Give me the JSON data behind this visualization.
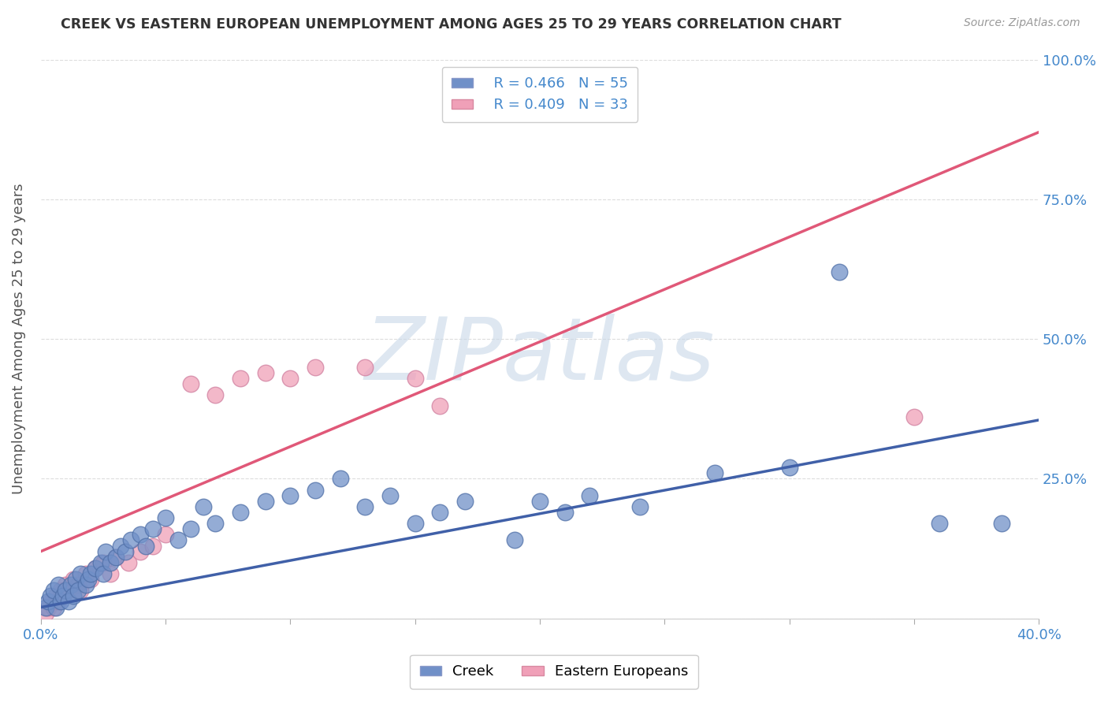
{
  "title": "CREEK VS EASTERN EUROPEAN UNEMPLOYMENT AMONG AGES 25 TO 29 YEARS CORRELATION CHART",
  "source": "Source: ZipAtlas.com",
  "xlabel": "",
  "ylabel": "Unemployment Among Ages 25 to 29 years",
  "xlim": [
    0.0,
    0.4
  ],
  "ylim": [
    0.0,
    1.0
  ],
  "xticks": [
    0.0,
    0.05,
    0.1,
    0.15,
    0.2,
    0.25,
    0.3,
    0.35,
    0.4
  ],
  "xticklabels": [
    "0.0%",
    "",
    "",
    "",
    "",
    "",
    "",
    "",
    "40.0%"
  ],
  "yticks": [
    0.0,
    0.25,
    0.5,
    0.75,
    1.0
  ],
  "yticklabels": [
    "",
    "25.0%",
    "50.0%",
    "75.0%",
    "100.0%"
  ],
  "creek_color": "#7090c8",
  "eastern_color": "#f0a0b8",
  "creek_line_color": "#4060a8",
  "eastern_line_color": "#e05878",
  "creek_R": 0.466,
  "creek_N": 55,
  "eastern_R": 0.409,
  "eastern_N": 33,
  "watermark": "ZIPatlas",
  "watermark_color": "#c8d8e8",
  "background_color": "#ffffff",
  "grid_color": "#dddddd",
  "creek_line_x0": 0.0,
  "creek_line_y0": 0.02,
  "creek_line_x1": 0.4,
  "creek_line_y1": 0.355,
  "eastern_line_x0": 0.0,
  "eastern_line_y0": 0.12,
  "eastern_line_x1": 0.4,
  "eastern_line_y1": 0.87,
  "creek_points_x": [
    0.002,
    0.003,
    0.004,
    0.005,
    0.006,
    0.007,
    0.008,
    0.009,
    0.01,
    0.011,
    0.012,
    0.013,
    0.014,
    0.015,
    0.016,
    0.018,
    0.019,
    0.02,
    0.022,
    0.024,
    0.025,
    0.026,
    0.028,
    0.03,
    0.032,
    0.034,
    0.036,
    0.04,
    0.042,
    0.045,
    0.05,
    0.055,
    0.06,
    0.065,
    0.07,
    0.08,
    0.09,
    0.1,
    0.11,
    0.12,
    0.13,
    0.14,
    0.15,
    0.16,
    0.17,
    0.19,
    0.2,
    0.21,
    0.22,
    0.24,
    0.27,
    0.3,
    0.32,
    0.36,
    0.385
  ],
  "creek_points_y": [
    0.02,
    0.03,
    0.04,
    0.05,
    0.02,
    0.06,
    0.03,
    0.04,
    0.05,
    0.03,
    0.06,
    0.04,
    0.07,
    0.05,
    0.08,
    0.06,
    0.07,
    0.08,
    0.09,
    0.1,
    0.08,
    0.12,
    0.1,
    0.11,
    0.13,
    0.12,
    0.14,
    0.15,
    0.13,
    0.16,
    0.18,
    0.14,
    0.16,
    0.2,
    0.17,
    0.19,
    0.21,
    0.22,
    0.23,
    0.25,
    0.2,
    0.22,
    0.17,
    0.19,
    0.21,
    0.14,
    0.21,
    0.19,
    0.22,
    0.2,
    0.26,
    0.27,
    0.62,
    0.17,
    0.17
  ],
  "eastern_points_x": [
    0.002,
    0.003,
    0.004,
    0.005,
    0.006,
    0.007,
    0.008,
    0.009,
    0.01,
    0.011,
    0.013,
    0.015,
    0.016,
    0.018,
    0.02,
    0.022,
    0.025,
    0.028,
    0.03,
    0.035,
    0.04,
    0.045,
    0.05,
    0.06,
    0.07,
    0.08,
    0.09,
    0.1,
    0.11,
    0.13,
    0.15,
    0.16,
    0.35
  ],
  "eastern_points_y": [
    0.01,
    0.02,
    0.03,
    0.02,
    0.04,
    0.03,
    0.05,
    0.04,
    0.06,
    0.05,
    0.07,
    0.06,
    0.05,
    0.08,
    0.07,
    0.09,
    0.1,
    0.08,
    0.11,
    0.1,
    0.12,
    0.13,
    0.15,
    0.42,
    0.4,
    0.43,
    0.44,
    0.43,
    0.45,
    0.45,
    0.43,
    0.38,
    0.36
  ]
}
